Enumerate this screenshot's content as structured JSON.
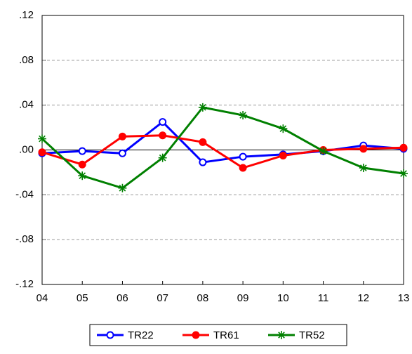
{
  "chart_data": {
    "type": "line",
    "categories": [
      "04",
      "05",
      "06",
      "07",
      "08",
      "09",
      "10",
      "11",
      "12",
      "13"
    ],
    "series": [
      {
        "name": "TR22",
        "color": "#0000ff",
        "marker": "open-circle",
        "values": [
          -0.003,
          -0.001,
          -0.003,
          0.025,
          -0.011,
          -0.006,
          -0.004,
          -0.001,
          0.004,
          0.001
        ]
      },
      {
        "name": "TR61",
        "color": "#ff0000",
        "marker": "filled-circle",
        "values": [
          -0.002,
          -0.013,
          0.012,
          0.013,
          0.007,
          -0.016,
          -0.005,
          0.0,
          0.001,
          0.002
        ]
      },
      {
        "name": "TR52",
        "color": "#008000",
        "marker": "asterisk",
        "values": [
          0.01,
          -0.023,
          -0.034,
          -0.007,
          0.038,
          0.031,
          0.019,
          -0.001,
          -0.016,
          -0.021
        ]
      }
    ],
    "ylim": [
      -0.12,
      0.12
    ],
    "yticks": [
      {
        "value": -0.12,
        "label": "-.12"
      },
      {
        "value": -0.08,
        "label": "-.08"
      },
      {
        "value": -0.04,
        "label": "-.04"
      },
      {
        "value": 0,
        "label": ".00"
      },
      {
        "value": 0.04,
        "label": ".04"
      },
      {
        "value": 0.08,
        "label": ".08"
      },
      {
        "value": 0.12,
        "label": ".12"
      }
    ],
    "grid": true,
    "legend": "bottom"
  }
}
